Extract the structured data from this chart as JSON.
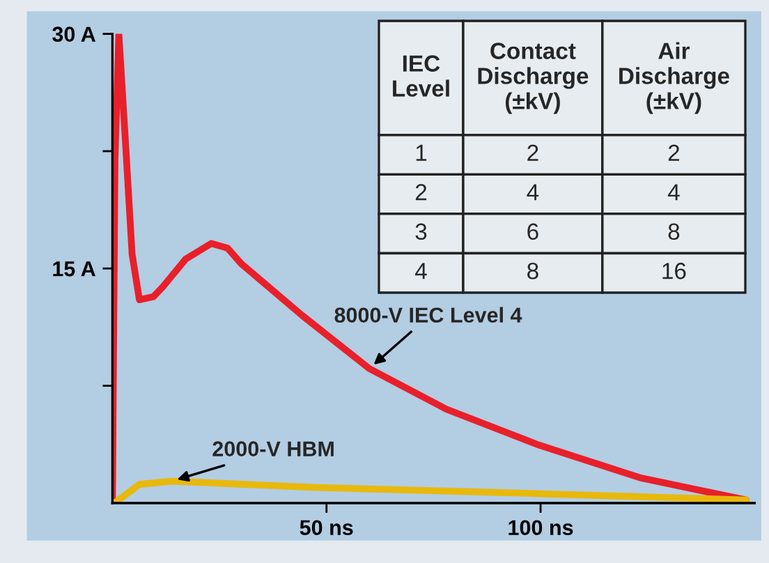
{
  "chart_data": {
    "type": "line",
    "xlim": [
      0,
      150
    ],
    "xticks": [
      {
        "value": 50,
        "label": "50 ns"
      },
      {
        "value": 100,
        "label": "100 ns"
      }
    ],
    "ylim": [
      0,
      30
    ],
    "yticks": [
      {
        "value": 7.5,
        "label": null
      },
      {
        "value": 15,
        "label": "15 A"
      },
      {
        "value": 22.5,
        "label": null
      },
      {
        "value": 30,
        "label": "30 A"
      }
    ],
    "grid": false,
    "legend": false,
    "line_style": "solid",
    "marker": "none",
    "series": [
      {
        "name": "8000-V IEC Level 4",
        "color": "#e8202a",
        "x": [
          0,
          0.6,
          1.5,
          3.0,
          4.6,
          6.3,
          9.6,
          11.7,
          17.1,
          23.1,
          26.9,
          30.1,
          44.3,
          60,
          78,
          99.7,
          123.5,
          148
        ],
        "values": [
          0,
          22,
          30,
          23.3,
          15.9,
          13.0,
          13.2,
          13.8,
          15.6,
          16.6,
          16.3,
          15.3,
          12.0,
          8.6,
          6.0,
          3.7,
          1.6,
          0.2
        ]
      },
      {
        "name": "2000-V HBM",
        "color": "#e8b80c",
        "x": [
          0.5,
          6.3,
          13.8,
          47.5,
          100,
          148
        ],
        "values": [
          0,
          1.2,
          1.4,
          1.0,
          0.6,
          0.2
        ]
      }
    ],
    "annotations": [
      "IEC\nLevel",
      "Contact\nDischarge\n(±kV)",
      "Air\nDischarge\n(±kV)",
      "1",
      "2",
      "2",
      "2",
      "4",
      "4",
      "3",
      "6",
      "8",
      "4",
      "8",
      "16"
    ]
  }
}
